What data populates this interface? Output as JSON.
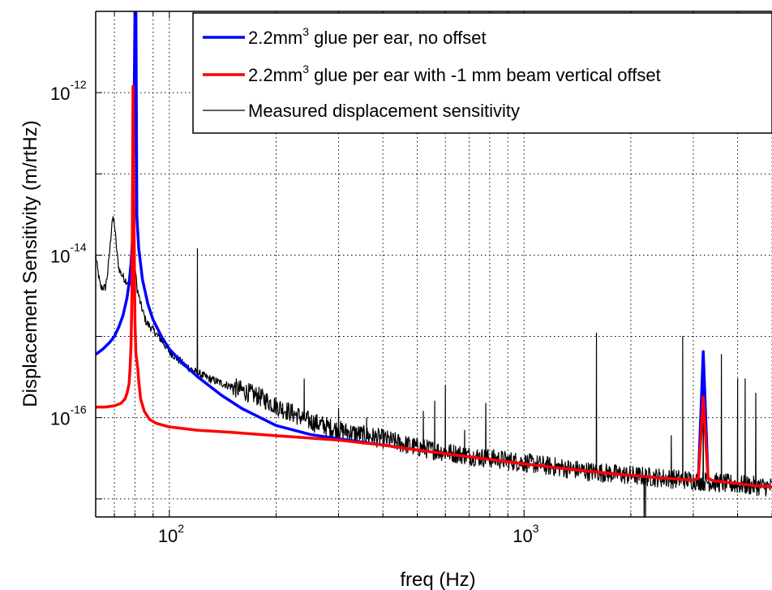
{
  "chart_data": {
    "type": "line",
    "xlabel": "freq (Hz)",
    "ylabel": "Displacement Sensitivity  (m/rtHz)",
    "xscale": "log",
    "yscale": "log",
    "xlim": [
      62,
      5000
    ],
    "ylim": [
      6e-18,
      1e-11
    ],
    "grid": true,
    "legend_position": "top-right",
    "x_ticks": [
      {
        "base": "10",
        "exp": "2",
        "value": 100
      },
      {
        "base": "10",
        "exp": "3",
        "value": 1000
      }
    ],
    "y_ticks": [
      {
        "base": "10",
        "exp": "-12",
        "value": 1e-12
      },
      {
        "base": "10",
        "exp": "-14",
        "value": 1e-14
      },
      {
        "base": "10",
        "exp": "-16",
        "value": 1e-16
      }
    ],
    "series": [
      {
        "name_parts": {
          "pre": "2.2mm",
          "sup": "3",
          "post": " glue per ear, no offset"
        },
        "color": "#0000ff",
        "width": 3.5,
        "x": [
          62,
          65,
          68,
          70,
          72,
          74,
          76,
          77,
          78,
          79,
          80,
          80.5,
          81,
          82,
          84,
          87,
          90,
          95,
          100,
          110,
          120,
          140,
          160,
          200,
          250,
          300,
          400,
          500,
          700,
          1000,
          1500,
          2000,
          2500,
          3000,
          3100,
          3200,
          3300,
          3400,
          3500,
          4000,
          4500,
          5000
        ],
        "y": [
          6e-16,
          7e-16,
          8.5e-16,
          1e-15,
          1.3e-15,
          1.8e-15,
          3e-15,
          4.5e-15,
          8e-15,
          2e-14,
          1e-11,
          1e-11,
          3e-14,
          1.2e-14,
          5e-15,
          2.5e-15,
          1.6e-15,
          1e-15,
          7e-16,
          4.5e-16,
          3.2e-16,
          1.9e-16,
          1.3e-16,
          8e-17,
          6.2e-17,
          5.5e-17,
          4.6e-17,
          4e-17,
          3.3e-17,
          2.7e-17,
          2.2e-17,
          1.95e-17,
          1.8e-17,
          1.7e-17,
          1.8e-17,
          6.5e-16,
          1.8e-17,
          1.68e-17,
          1.65e-17,
          1.55e-17,
          1.45e-17,
          1.4e-17
        ]
      },
      {
        "name_parts": {
          "pre": "2.2mm",
          "sup": "3",
          "post": " glue per ear with -1 mm beam vertical offset"
        },
        "color": "#ff0000",
        "width": 3.5,
        "x": [
          62,
          66,
          70,
          73,
          75,
          76,
          77,
          77.5,
          78,
          78.5,
          79,
          79.5,
          80,
          80.5,
          81,
          81.5,
          82,
          83,
          85,
          88,
          92,
          100,
          120,
          150,
          200,
          300,
          400,
          500,
          700,
          1000,
          1500,
          2000,
          2500,
          3000,
          3100,
          3200,
          3300,
          3400,
          3500,
          4000,
          4500,
          5000
        ],
        "y": [
          1.35e-16,
          1.35e-16,
          1.4e-16,
          1.5e-16,
          1.7e-16,
          2e-16,
          2.6e-16,
          4e-16,
          8e-16,
          4e-15,
          1.2e-12,
          3e-14,
          1.5e-15,
          6e-16,
          5e-16,
          4e-16,
          2.8e-16,
          1.7e-16,
          1.2e-16,
          9.5e-17,
          8.5e-17,
          7.7e-17,
          7e-17,
          6.6e-17,
          6e-17,
          5.3e-17,
          4.6e-17,
          4e-17,
          3.3e-17,
          2.7e-17,
          2.2e-17,
          1.95e-17,
          1.8e-17,
          1.7e-17,
          1.8e-17,
          1.8e-16,
          1.8e-17,
          1.68e-17,
          1.65e-17,
          1.55e-17,
          1.45e-17,
          1.4e-17
        ]
      },
      {
        "name": "Measured displacement sensitivity",
        "color": "#000000",
        "width": 1.2,
        "trend": {
          "x": [
            62,
            63,
            64,
            66,
            67,
            68,
            69,
            70,
            71,
            72,
            73,
            75,
            77,
            79,
            80,
            81,
            83,
            86,
            90,
            95,
            100,
            110,
            118,
            130,
            150,
            180,
            200,
            250,
            300,
            400,
            500,
            700,
            1000,
            1500,
            2000,
            2500,
            3000,
            4000,
            5000
          ],
          "y": [
            1e-14,
            6e-15,
            4e-15,
            4e-15,
            6e-15,
            1.2e-14,
            2.8e-14,
            2.5e-14,
            1.2e-14,
            7e-15,
            6e-15,
            5e-15,
            4.5e-15,
            4e-15,
            8e-15,
            4e-15,
            2.5e-15,
            1.5e-15,
            1.2e-15,
            9e-16,
            6.5e-16,
            4.5e-16,
            3.7e-16,
            3e-16,
            2.4e-16,
            1.8e-16,
            1.4e-16,
            9e-17,
            7e-17,
            5.5e-17,
            4.3e-17,
            3.4e-17,
            2.8e-17,
            2.2e-17,
            1.95e-17,
            1.8e-17,
            1.7e-17,
            1.5e-17,
            1.4e-17
          ]
        },
        "peaks": [
          {
            "f": 120,
            "v": 1.2e-14
          },
          {
            "f": 180,
            "v": 1.8e-16
          },
          {
            "f": 240,
            "v": 3e-16
          },
          {
            "f": 300,
            "v": 1.3e-16
          },
          {
            "f": 360,
            "v": 1e-16
          },
          {
            "f": 520,
            "v": 1.2e-16
          },
          {
            "f": 560,
            "v": 1.6e-16
          },
          {
            "f": 600,
            "v": 2.5e-16
          },
          {
            "f": 680,
            "v": 7e-17
          },
          {
            "f": 780,
            "v": 1.5e-16
          },
          {
            "f": 1600,
            "v": 1.1e-15
          },
          {
            "f": 2600,
            "v": 6e-17
          },
          {
            "f": 2800,
            "v": 1e-15
          },
          {
            "f": 3200,
            "v": 3e-16
          },
          {
            "f": 3600,
            "v": 6e-16
          },
          {
            "f": 4000,
            "v": 3e-16
          },
          {
            "f": 4200,
            "v": 3e-16
          },
          {
            "f": 4500,
            "v": 2e-16
          }
        ],
        "dips": [
          {
            "f": 2180,
            "v": 5e-18
          },
          {
            "f": 2200,
            "v": 3e-18
          }
        ]
      }
    ]
  }
}
